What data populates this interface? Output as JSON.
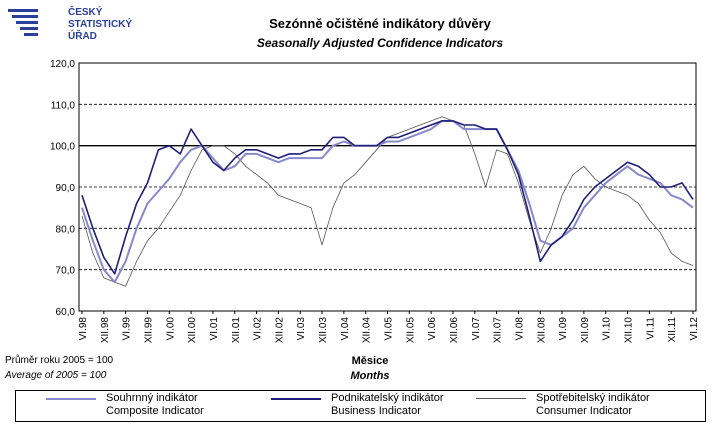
{
  "logo": {
    "lines": [
      "ČESKÝ",
      "STATISTICKÝ",
      "ÚŘAD"
    ],
    "color": "#2a3f9a"
  },
  "title": {
    "cz": "Sezónně očištěné indikátory důvěry",
    "en": "Seasonally Adjusted Confidence Indicators"
  },
  "footnote": {
    "cz": "Průměr roku 2005 = 100",
    "en": "Average of 2005 = 100"
  },
  "xlabel": {
    "cz": "Měsice",
    "en": "Months"
  },
  "legend": [
    {
      "cz": "Souhrnný indikátor",
      "en": "Composite Indicator"
    },
    {
      "cz": "Podnikatelský indikátor",
      "en": "Business Indicator"
    },
    {
      "cz": "Spotřebitelský indikátor",
      "en": "Consumer Indicator"
    }
  ],
  "chart_data": {
    "type": "line",
    "ylim": [
      60,
      120
    ],
    "yticks": [
      "60,0",
      "70,0",
      "80,0",
      "90,0",
      "100,0",
      "110,0",
      "120,0"
    ],
    "grid": "dashed horizontal at 70, 80, 90, 110; solid at 100",
    "xticks": [
      "VI.98",
      "XII.98",
      "VI.99",
      "XII.99",
      "VI.00",
      "XII.00",
      "VI.01",
      "XII.01",
      "VI.02",
      "XII.02",
      "VI.03",
      "XII.03",
      "VI.04",
      "XII.04",
      "VI.05",
      "XII.05",
      "VI.06",
      "XII.06",
      "VI.07",
      "XII.07",
      "VI.08",
      "XII.08",
      "VI.09",
      "XII.09",
      "VI.10",
      "XII.10",
      "VI.11",
      "XII.11",
      "VI.12"
    ],
    "x": [
      "VI.98",
      "IX.98",
      "XII.98",
      "III.99",
      "VI.99",
      "IX.99",
      "XII.99",
      "III.00",
      "VI.00",
      "IX.00",
      "XII.00",
      "III.01",
      "VI.01",
      "IX.01",
      "XII.01",
      "III.02",
      "VI.02",
      "IX.02",
      "XII.02",
      "III.03",
      "VI.03",
      "IX.03",
      "XII.03",
      "III.04",
      "VI.04",
      "IX.04",
      "XII.04",
      "III.05",
      "VI.05",
      "IX.05",
      "XII.05",
      "III.06",
      "VI.06",
      "IX.06",
      "XII.06",
      "III.07",
      "VI.07",
      "IX.07",
      "XII.07",
      "III.08",
      "VI.08",
      "IX.08",
      "XII.08",
      "III.09",
      "VI.09",
      "IX.09",
      "XII.09",
      "III.10",
      "VI.10",
      "IX.10",
      "XII.10",
      "III.11",
      "VI.11",
      "IX.11",
      "XII.11",
      "III.12",
      "VI.12"
    ],
    "series": [
      {
        "name": "Souhrnný indikátor / Composite Indicator",
        "color": "#8888cc",
        "width": 2,
        "values": [
          85,
          77,
          70,
          67,
          72,
          80,
          86,
          89,
          92,
          96,
          99,
          100,
          97,
          94,
          95,
          98,
          98,
          97,
          96,
          97,
          97,
          97,
          97,
          100,
          101,
          100,
          100,
          100,
          101,
          101,
          102,
          103,
          104,
          106,
          106,
          104,
          104,
          104,
          104,
          99,
          94,
          86,
          77,
          76,
          78,
          80,
          85,
          88,
          91,
          93,
          95,
          93,
          92,
          91,
          88,
          87,
          85
        ]
      },
      {
        "name": "Podnikatelský indikátor / Business Indicator",
        "color": "#1f1f7a",
        "width": 1.6,
        "values": [
          88,
          80,
          73,
          69,
          78,
          86,
          91,
          99,
          100,
          98,
          104,
          100,
          96,
          94,
          97,
          99,
          99,
          98,
          97,
          98,
          98,
          99,
          99,
          102,
          102,
          100,
          100,
          100,
          102,
          102,
          103,
          104,
          105,
          106,
          106,
          105,
          105,
          104,
          104,
          99,
          93,
          83,
          72,
          76,
          78,
          82,
          87,
          90,
          92,
          94,
          96,
          95,
          93,
          90,
          90,
          91,
          87
        ]
      },
      {
        "name": "Spotřebitelský indikátor / Consumer Indicator",
        "color": "#555555",
        "width": 0.8,
        "values": [
          83,
          74,
          68,
          67,
          66,
          72,
          77,
          80,
          84,
          88,
          94,
          99,
          100,
          100,
          98,
          95,
          93,
          91,
          88,
          87,
          86,
          85,
          76,
          85,
          91,
          93,
          96,
          99,
          102,
          103,
          104,
          105,
          106,
          107,
          106,
          105,
          98,
          90,
          99,
          98,
          91,
          82,
          74,
          80,
          88,
          93,
          95,
          92,
          90,
          89,
          88,
          86,
          82,
          79,
          74,
          72,
          71
        ]
      }
    ]
  }
}
